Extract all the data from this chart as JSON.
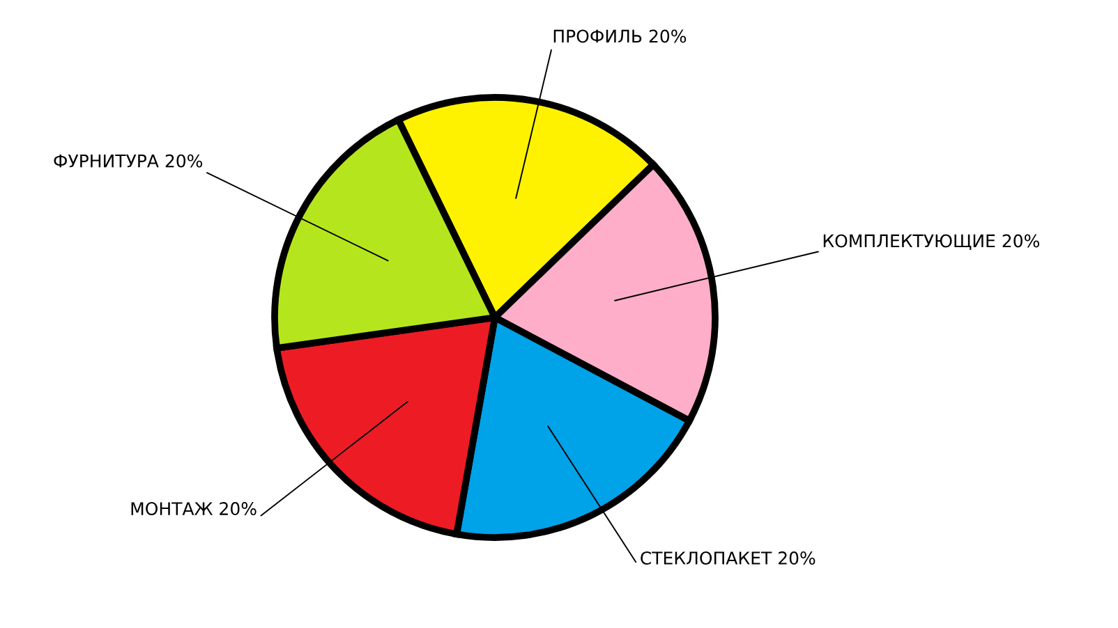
{
  "chart_data": {
    "type": "pie",
    "categories": [
      "ПРОФИЛЬ 20%",
      "КОМПЛЕКТУЮЩИЕ 20%",
      "СТЕКЛОПАКЕТ 20%",
      "МОНТАЖ 20%",
      "ФУРНИТУРА 20%"
    ],
    "values": [
      20,
      20,
      20,
      20,
      20
    ],
    "colors": [
      "#fff200",
      "#ffaec9",
      "#00a2e8",
      "#ed1c24",
      "#b5e61d"
    ]
  }
}
